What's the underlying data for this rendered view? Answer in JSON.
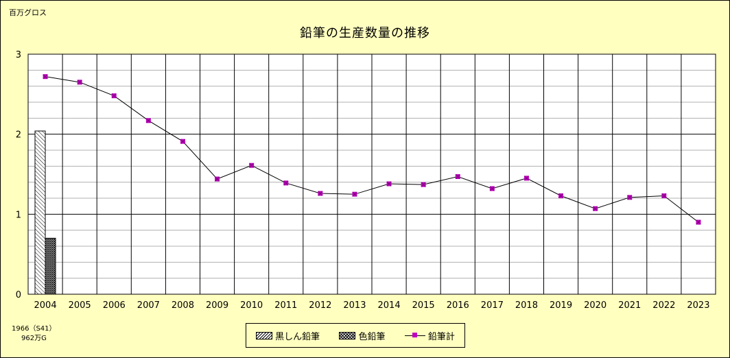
{
  "unit_label": "百万グロス",
  "chart_data": {
    "type": "line",
    "title": "鉛筆の生産数量の推移",
    "categories": [
      "2004",
      "2005",
      "2006",
      "2007",
      "2008",
      "2009",
      "2010",
      "2011",
      "2012",
      "2013",
      "2014",
      "2015",
      "2016",
      "2017",
      "2018",
      "2019",
      "2020",
      "2021",
      "2022",
      "2023"
    ],
    "yticks": [
      "0",
      "1",
      "2",
      "3"
    ],
    "ylim": [
      0,
      3
    ],
    "minor_grid_step": 0.2,
    "series": [
      {
        "name": "鉛筆計",
        "kind": "line",
        "color": "#c000c0",
        "values": [
          2.72,
          2.65,
          2.48,
          2.17,
          1.91,
          1.44,
          1.61,
          1.39,
          1.26,
          1.25,
          1.38,
          1.37,
          1.47,
          1.32,
          1.45,
          1.23,
          1.07,
          1.21,
          1.23,
          0.9
        ]
      }
    ],
    "reference_bars": [
      {
        "name": "黒しん鉛筆",
        "pattern": "kuro",
        "value": 2.04
      },
      {
        "name": "色鉛筆",
        "pattern": "iro",
        "value": 0.7
      }
    ],
    "legend_position": "bottom"
  },
  "note": {
    "line1": "1966（S41）",
    "line2": "962万G"
  }
}
